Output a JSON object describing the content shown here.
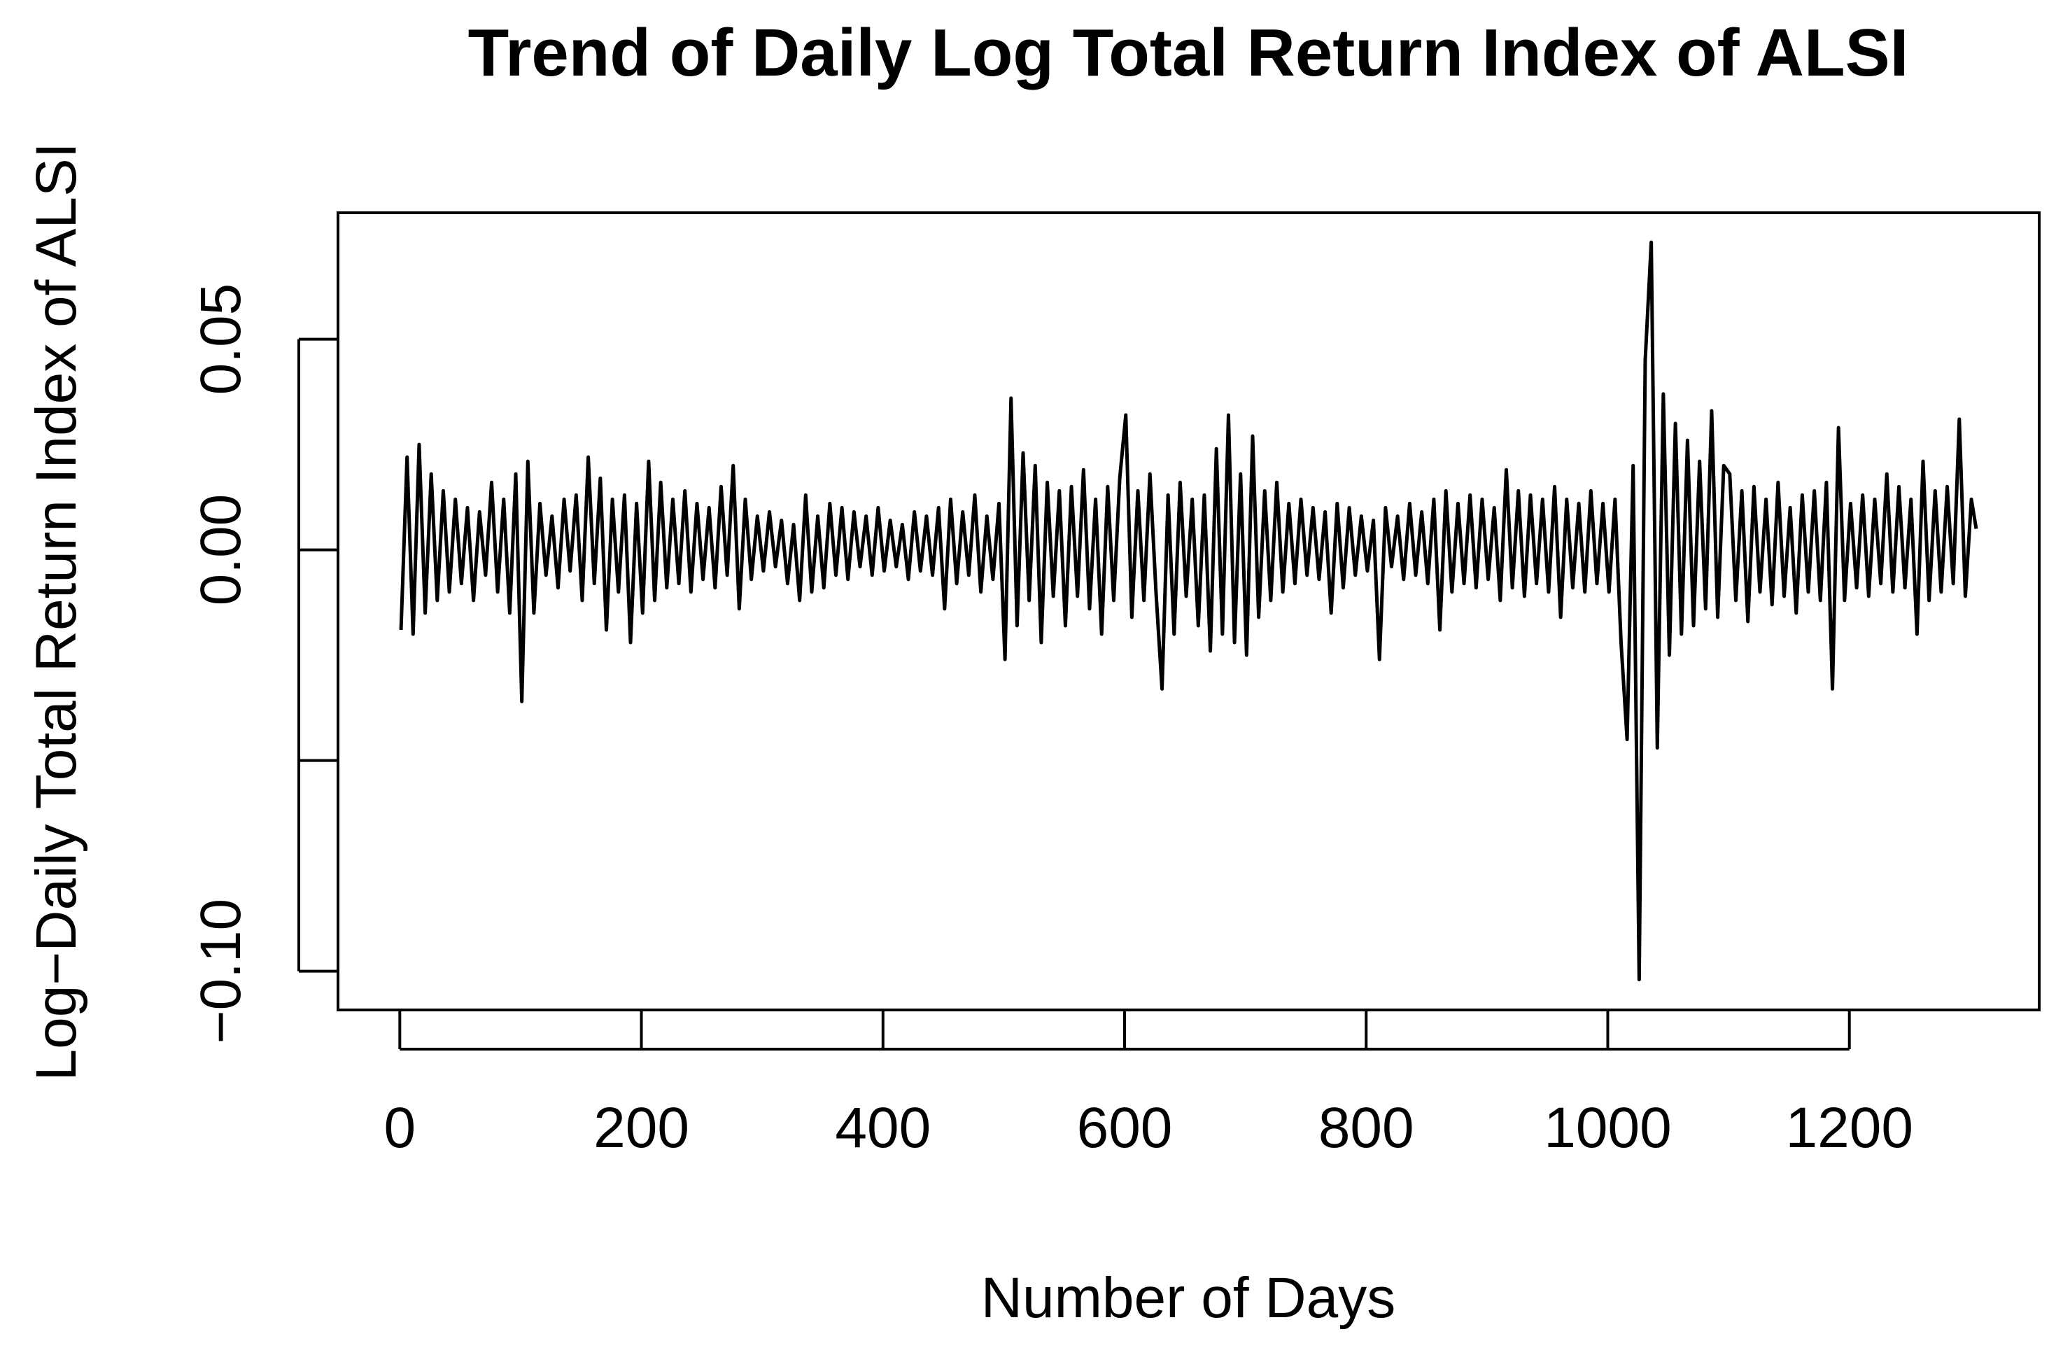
{
  "chart_data": {
    "type": "line",
    "title": "Trend of Daily Log Total Return Index of ALSI",
    "x_label": "Number of Days",
    "y_label": "Log−Daily Total Return Index of ALSI",
    "xlim": [
      -51.16,
      1357.16
    ],
    "ylim": [
      -0.1092,
      0.08
    ],
    "xticks": [
      0,
      200,
      400,
      600,
      800,
      1000,
      1200
    ],
    "yticks": [
      {
        "value": -0.1,
        "label": "−0.10"
      },
      {
        "value": -0.05,
        "label": null
      },
      {
        "value": 0,
        "label": "0.00"
      },
      {
        "value": 0.05,
        "label": "0.05"
      }
    ],
    "color": "#000000",
    "x": [
      1,
      6,
      11,
      16,
      21,
      26,
      31,
      36,
      41,
      46,
      51,
      56,
      61,
      66,
      71,
      76,
      81,
      86,
      91,
      96,
      101,
      106,
      111,
      116,
      121,
      126,
      131,
      136,
      141,
      146,
      151,
      156,
      161,
      166,
      171,
      176,
      181,
      186,
      191,
      196,
      201,
      206,
      211,
      216,
      221,
      226,
      231,
      236,
      241,
      246,
      251,
      256,
      261,
      266,
      271,
      276,
      281,
      286,
      291,
      296,
      301,
      306,
      311,
      316,
      321,
      326,
      331,
      336,
      341,
      346,
      351,
      356,
      361,
      366,
      371,
      376,
      381,
      386,
      391,
      396,
      401,
      406,
      411,
      416,
      421,
      426,
      431,
      436,
      441,
      446,
      451,
      456,
      461,
      466,
      471,
      476,
      481,
      486,
      491,
      496,
      501,
      506,
      511,
      516,
      521,
      526,
      531,
      536,
      541,
      546,
      551,
      556,
      561,
      566,
      571,
      576,
      581,
      586,
      591,
      596,
      601,
      606,
      611,
      616,
      621,
      626,
      631,
      636,
      641,
      646,
      651,
      656,
      661,
      666,
      671,
      676,
      681,
      686,
      691,
      696,
      701,
      706,
      711,
      716,
      721,
      726,
      731,
      736,
      741,
      746,
      751,
      756,
      761,
      766,
      771,
      776,
      781,
      786,
      791,
      796,
      801,
      806,
      811,
      816,
      821,
      826,
      831,
      836,
      841,
      846,
      851,
      856,
      861,
      866,
      871,
      876,
      881,
      886,
      891,
      896,
      901,
      906,
      911,
      916,
      921,
      926,
      931,
      936,
      941,
      946,
      951,
      956,
      961,
      966,
      971,
      976,
      981,
      986,
      991,
      996,
      1001,
      1006,
      1011,
      1016,
      1021,
      1026,
      1031,
      1036,
      1041,
      1046,
      1051,
      1056,
      1061,
      1066,
      1071,
      1076,
      1081,
      1086,
      1091,
      1096,
      1101,
      1106,
      1111,
      1116,
      1121,
      1126,
      1131,
      1136,
      1141,
      1146,
      1151,
      1156,
      1161,
      1166,
      1171,
      1176,
      1181,
      1186,
      1191,
      1196,
      1201,
      1206,
      1211,
      1216,
      1221,
      1226,
      1231,
      1236,
      1241,
      1246,
      1251,
      1256,
      1261,
      1266,
      1271,
      1276,
      1281,
      1286,
      1291,
      1296,
      1301,
      1305
    ],
    "values": [
      -0.019,
      0.022,
      -0.02,
      0.025,
      -0.015,
      0.018,
      -0.012,
      0.014,
      -0.01,
      0.012,
      -0.008,
      0.01,
      -0.012,
      0.009,
      -0.006,
      0.016,
      -0.01,
      0.012,
      -0.015,
      0.018,
      -0.036,
      0.021,
      -0.015,
      0.011,
      -0.006,
      0.008,
      -0.009,
      0.012,
      -0.005,
      0.013,
      -0.012,
      0.022,
      -0.008,
      0.017,
      -0.019,
      0.012,
      -0.01,
      0.013,
      -0.022,
      0.011,
      -0.015,
      0.021,
      -0.012,
      0.016,
      -0.009,
      0.012,
      -0.008,
      0.014,
      -0.01,
      0.011,
      -0.007,
      0.01,
      -0.009,
      0.015,
      -0.006,
      0.02,
      -0.014,
      0.012,
      -0.007,
      0.008,
      -0.005,
      0.009,
      -0.004,
      0.007,
      -0.008,
      0.006,
      -0.012,
      0.013,
      -0.01,
      0.008,
      -0.009,
      0.011,
      -0.006,
      0.01,
      -0.007,
      0.009,
      -0.004,
      0.008,
      -0.006,
      0.01,
      -0.005,
      0.007,
      -0.004,
      0.006,
      -0.007,
      0.009,
      -0.005,
      0.008,
      -0.006,
      0.01,
      -0.014,
      0.012,
      -0.008,
      0.009,
      -0.006,
      0.013,
      -0.01,
      0.008,
      -0.007,
      0.011,
      -0.026,
      0.036,
      -0.018,
      0.023,
      -0.012,
      0.02,
      -0.022,
      0.016,
      -0.011,
      0.014,
      -0.018,
      0.015,
      -0.011,
      0.019,
      -0.014,
      0.012,
      -0.02,
      0.015,
      -0.012,
      0.017,
      0.032,
      -0.016,
      0.014,
      -0.012,
      0.018,
      -0.01,
      -0.033,
      0.013,
      -0.02,
      0.016,
      -0.011,
      0.012,
      -0.018,
      0.013,
      -0.024,
      0.024,
      -0.02,
      0.032,
      -0.022,
      0.018,
      -0.025,
      0.027,
      -0.016,
      0.014,
      -0.012,
      0.016,
      -0.01,
      0.011,
      -0.008,
      0.012,
      -0.006,
      0.01,
      -0.007,
      0.009,
      -0.015,
      0.011,
      -0.009,
      0.01,
      -0.006,
      0.008,
      -0.005,
      0.007,
      -0.026,
      0.01,
      -0.004,
      0.008,
      -0.007,
      0.011,
      -0.006,
      0.009,
      -0.008,
      0.012,
      -0.019,
      0.014,
      -0.01,
      0.011,
      -0.008,
      0.013,
      -0.009,
      0.012,
      -0.007,
      0.01,
      -0.012,
      0.019,
      -0.009,
      0.014,
      -0.011,
      0.013,
      -0.008,
      0.012,
      -0.01,
      0.015,
      -0.016,
      0.012,
      -0.009,
      0.011,
      -0.01,
      0.014,
      -0.008,
      0.011,
      -0.01,
      0.012,
      -0.022,
      -0.045,
      0.02,
      -0.102,
      0.045,
      0.073,
      -0.047,
      0.037,
      -0.025,
      0.03,
      -0.02,
      0.026,
      -0.018,
      0.021,
      -0.014,
      0.033,
      -0.016,
      0.02,
      0.018,
      -0.012,
      0.014,
      -0.017,
      0.015,
      -0.01,
      0.012,
      -0.013,
      0.016,
      -0.011,
      0.01,
      -0.015,
      0.013,
      -0.01,
      0.014,
      -0.012,
      0.016,
      -0.033,
      0.029,
      -0.012,
      0.011,
      -0.009,
      0.013,
      -0.011,
      0.012,
      -0.008,
      0.018,
      -0.01,
      0.015,
      -0.009,
      0.012,
      -0.02,
      0.021,
      -0.012,
      0.014,
      -0.01,
      0.015,
      -0.008,
      0.031,
      -0.011,
      0.012,
      0.005
    ]
  }
}
